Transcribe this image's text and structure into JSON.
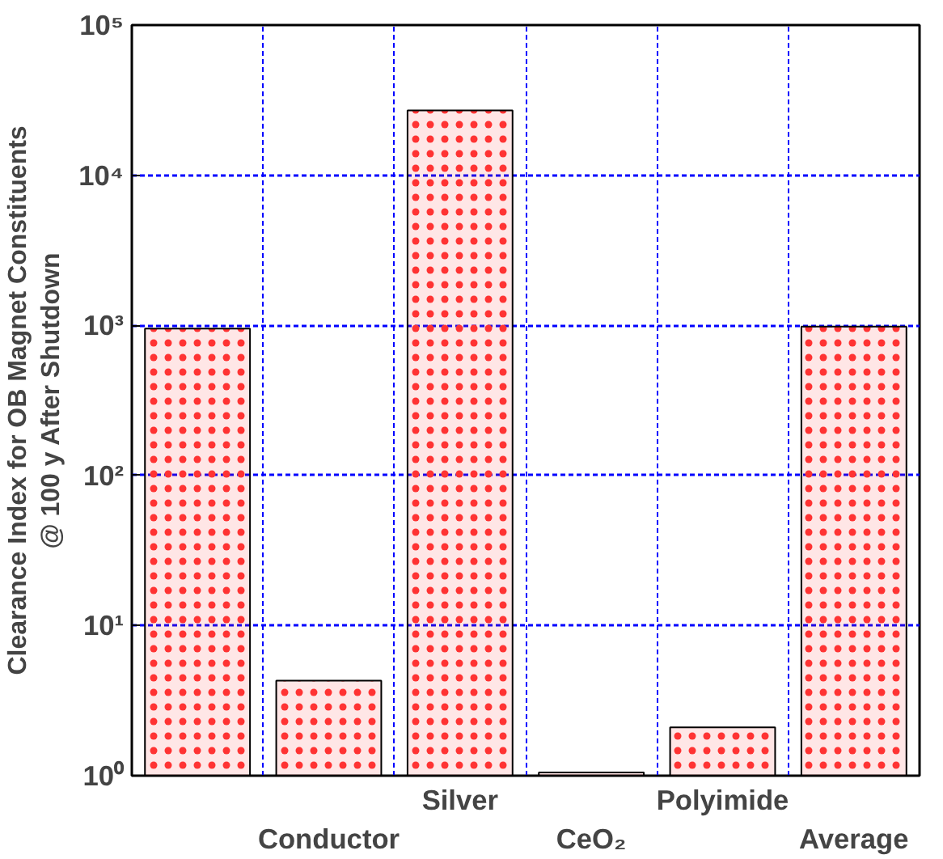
{
  "chart_data": {
    "type": "bar",
    "ylabel": "Clearance Index for OB Magnet Constituents\n@ 100 y After Shutdown",
    "categories": [
      null,
      "Conductor",
      "Silver",
      "CeO₂",
      "Polyimide",
      "Average"
    ],
    "values": [
      950,
      4.3,
      27000,
      1.05,
      2.1,
      980
    ],
    "color": "#ff3333",
    "log": "y",
    "ylim": [
      1,
      100000
    ],
    "yticks": [
      {
        "value": 1,
        "label": "10⁰"
      },
      {
        "value": 10,
        "label": "10¹"
      },
      {
        "value": 100,
        "label": "10²"
      },
      {
        "value": 1000,
        "label": "10³"
      },
      {
        "value": 10000,
        "label": "10⁴"
      },
      {
        "value": 100000,
        "label": "10⁵"
      }
    ],
    "grid": true
  }
}
